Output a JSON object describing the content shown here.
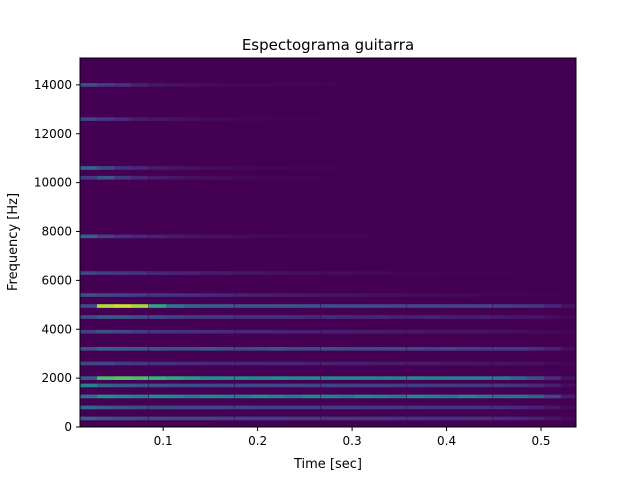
{
  "chart_data": {
    "type": "heatmap",
    "title": "Espectograma guitarra",
    "xlabel": "Time [sec]",
    "ylabel": "Frequency [Hz]",
    "xlim": [
      0.012,
      0.537
    ],
    "ylim": [
      0,
      15100
    ],
    "x_ticks": [
      0.1,
      0.2,
      0.3,
      0.4,
      0.5
    ],
    "x_tick_labels": [
      "0.1",
      "0.2",
      "0.3",
      "0.4",
      "0.5"
    ],
    "y_ticks": [
      0,
      2000,
      4000,
      6000,
      8000,
      10000,
      12000,
      14000
    ],
    "y_tick_labels": [
      "0",
      "2000",
      "4000",
      "6000",
      "8000",
      "10000",
      "12000",
      "14000"
    ],
    "colormap": "viridis",
    "grid": false,
    "background_color": "#440154",
    "time_bins": [
      0.021,
      0.039,
      0.057,
      0.075,
      0.094,
      0.112,
      0.13,
      0.148,
      0.166,
      0.185,
      0.203,
      0.221,
      0.239,
      0.257,
      0.276,
      0.294,
      0.312,
      0.33,
      0.348,
      0.367,
      0.385,
      0.403,
      0.421,
      0.439,
      0.458,
      0.476,
      0.494,
      0.512,
      0.53
    ],
    "bands": [
      {
        "freq": 14000,
        "levels": [
          0.3,
          0.22,
          0.18,
          0.12,
          0.08,
          0.06,
          0.05,
          0.04,
          0.03,
          0.02,
          0.02,
          0.01,
          0.01,
          0.01,
          0.01,
          0.0,
          0.0,
          0.0,
          0.0,
          0.0,
          0.0,
          0.0,
          0.0,
          0.0,
          0.0,
          0.0,
          0.0,
          0.0,
          0.0
        ]
      },
      {
        "freq": 12600,
        "levels": [
          0.25,
          0.2,
          0.15,
          0.1,
          0.08,
          0.06,
          0.05,
          0.04,
          0.03,
          0.02,
          0.02,
          0.01,
          0.01,
          0.01,
          0.0,
          0.0,
          0.0,
          0.0,
          0.0,
          0.0,
          0.0,
          0.0,
          0.0,
          0.0,
          0.0,
          0.0,
          0.0,
          0.0,
          0.0
        ]
      },
      {
        "freq": 10600,
        "levels": [
          0.42,
          0.28,
          0.18,
          0.14,
          0.1,
          0.08,
          0.06,
          0.05,
          0.04,
          0.03,
          0.02,
          0.02,
          0.01,
          0.01,
          0.01,
          0.0,
          0.0,
          0.0,
          0.0,
          0.0,
          0.0,
          0.0,
          0.0,
          0.0,
          0.0,
          0.0,
          0.0,
          0.0,
          0.0
        ]
      },
      {
        "freq": 10200,
        "levels": [
          0.22,
          0.34,
          0.2,
          0.14,
          0.1,
          0.08,
          0.06,
          0.05,
          0.04,
          0.03,
          0.02,
          0.02,
          0.01,
          0.01,
          0.0,
          0.0,
          0.0,
          0.0,
          0.0,
          0.0,
          0.0,
          0.0,
          0.0,
          0.0,
          0.0,
          0.0,
          0.0,
          0.0,
          0.0
        ]
      },
      {
        "freq": 7800,
        "levels": [
          0.38,
          0.24,
          0.18,
          0.14,
          0.12,
          0.1,
          0.08,
          0.06,
          0.05,
          0.04,
          0.03,
          0.03,
          0.02,
          0.02,
          0.01,
          0.01,
          0.01,
          0.0,
          0.0,
          0.0,
          0.0,
          0.0,
          0.0,
          0.0,
          0.0,
          0.0,
          0.0,
          0.0,
          0.0
        ]
      },
      {
        "freq": 6300,
        "levels": [
          0.26,
          0.22,
          0.2,
          0.18,
          0.15,
          0.13,
          0.12,
          0.1,
          0.09,
          0.08,
          0.07,
          0.06,
          0.05,
          0.05,
          0.04,
          0.04,
          0.03,
          0.03,
          0.02,
          0.02,
          0.02,
          0.01,
          0.01,
          0.01,
          0.01,
          0.0,
          0.0,
          0.0,
          0.0
        ]
      },
      {
        "freq": 5400,
        "levels": [
          0.3,
          0.26,
          0.24,
          0.22,
          0.2,
          0.18,
          0.16,
          0.15,
          0.14,
          0.12,
          0.11,
          0.1,
          0.09,
          0.08,
          0.07,
          0.07,
          0.06,
          0.05,
          0.05,
          0.04,
          0.04,
          0.03,
          0.03,
          0.02,
          0.02,
          0.02,
          0.01,
          0.01,
          0.0
        ]
      },
      {
        "freq": 4950,
        "levels": [
          0.3,
          0.92,
          0.95,
          0.9,
          0.7,
          0.5,
          0.42,
          0.38,
          0.36,
          0.35,
          0.34,
          0.34,
          0.33,
          0.32,
          0.31,
          0.3,
          0.3,
          0.29,
          0.28,
          0.28,
          0.27,
          0.26,
          0.25,
          0.25,
          0.24,
          0.22,
          0.2,
          0.14,
          0.06
        ]
      },
      {
        "freq": 4500,
        "levels": [
          0.28,
          0.36,
          0.34,
          0.3,
          0.28,
          0.24,
          0.22,
          0.2,
          0.2,
          0.18,
          0.17,
          0.18,
          0.16,
          0.15,
          0.16,
          0.14,
          0.13,
          0.14,
          0.12,
          0.12,
          0.13,
          0.11,
          0.1,
          0.11,
          0.09,
          0.08,
          0.07,
          0.05,
          0.02
        ]
      },
      {
        "freq": 3900,
        "levels": [
          0.24,
          0.3,
          0.26,
          0.22,
          0.2,
          0.18,
          0.17,
          0.16,
          0.15,
          0.14,
          0.14,
          0.13,
          0.12,
          0.12,
          0.11,
          0.11,
          0.1,
          0.1,
          0.09,
          0.09,
          0.08,
          0.08,
          0.07,
          0.07,
          0.06,
          0.05,
          0.04,
          0.03,
          0.01
        ]
      },
      {
        "freq": 3200,
        "levels": [
          0.3,
          0.4,
          0.36,
          0.34,
          0.32,
          0.3,
          0.3,
          0.34,
          0.3,
          0.28,
          0.3,
          0.32,
          0.28,
          0.27,
          0.3,
          0.29,
          0.26,
          0.27,
          0.28,
          0.25,
          0.24,
          0.26,
          0.23,
          0.22,
          0.22,
          0.2,
          0.17,
          0.12,
          0.05
        ]
      },
      {
        "freq": 2600,
        "levels": [
          0.28,
          0.26,
          0.22,
          0.2,
          0.18,
          0.17,
          0.16,
          0.15,
          0.15,
          0.14,
          0.14,
          0.13,
          0.13,
          0.12,
          0.12,
          0.11,
          0.11,
          0.1,
          0.1,
          0.09,
          0.09,
          0.08,
          0.08,
          0.07,
          0.07,
          0.06,
          0.05,
          0.03,
          0.01
        ]
      },
      {
        "freq": 2000,
        "levels": [
          0.35,
          0.78,
          0.8,
          0.78,
          0.74,
          0.7,
          0.66,
          0.62,
          0.6,
          0.6,
          0.58,
          0.6,
          0.58,
          0.56,
          0.56,
          0.58,
          0.56,
          0.55,
          0.55,
          0.56,
          0.54,
          0.53,
          0.52,
          0.52,
          0.5,
          0.42,
          0.3,
          0.16,
          0.06
        ]
      },
      {
        "freq": 1700,
        "levels": [
          0.55,
          0.4,
          0.36,
          0.33,
          0.32,
          0.3,
          0.3,
          0.28,
          0.28,
          0.27,
          0.27,
          0.26,
          0.26,
          0.25,
          0.25,
          0.24,
          0.24,
          0.24,
          0.23,
          0.23,
          0.22,
          0.22,
          0.21,
          0.21,
          0.2,
          0.18,
          0.15,
          0.1,
          0.04
        ]
      },
      {
        "freq": 1250,
        "levels": [
          0.45,
          0.62,
          0.56,
          0.52,
          0.6,
          0.56,
          0.5,
          0.58,
          0.54,
          0.52,
          0.6,
          0.55,
          0.5,
          0.58,
          0.54,
          0.5,
          0.57,
          0.53,
          0.49,
          0.56,
          0.52,
          0.48,
          0.55,
          0.5,
          0.46,
          0.48,
          0.4,
          0.25,
          0.1
        ]
      },
      {
        "freq": 800,
        "levels": [
          0.42,
          0.36,
          0.32,
          0.3,
          0.28,
          0.27,
          0.26,
          0.26,
          0.25,
          0.25,
          0.24,
          0.24,
          0.23,
          0.23,
          0.22,
          0.22,
          0.21,
          0.21,
          0.2,
          0.2,
          0.19,
          0.19,
          0.18,
          0.18,
          0.17,
          0.15,
          0.12,
          0.08,
          0.03
        ]
      },
      {
        "freq": 350,
        "levels": [
          0.38,
          0.32,
          0.3,
          0.28,
          0.27,
          0.26,
          0.25,
          0.25,
          0.24,
          0.24,
          0.23,
          0.23,
          0.22,
          0.22,
          0.21,
          0.21,
          0.2,
          0.2,
          0.19,
          0.19,
          0.18,
          0.18,
          0.17,
          0.17,
          0.16,
          0.14,
          0.12,
          0.08,
          0.03
        ]
      }
    ]
  }
}
